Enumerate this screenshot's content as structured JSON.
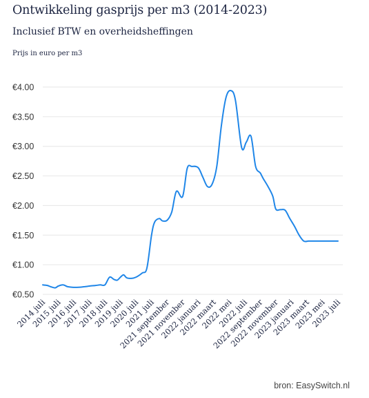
{
  "chart_data": {
    "type": "line",
    "title": "Ontwikkeling gasprijs per m3 (2014-2023)",
    "subtitle": "Inclusief BTW en overheidsheffingen",
    "ylabel": "Prijs in euro per m3",
    "source": "bron: EasySwitch.nl",
    "color": "#1f86e8",
    "grid": true,
    "ylim": [
      0.5,
      4.0
    ],
    "y_ticks": [
      0.5,
      1.0,
      1.5,
      2.0,
      2.5,
      3.0,
      3.5,
      4.0
    ],
    "y_tick_labels": [
      "€0.50",
      "€1.00",
      "€1.50",
      "€2.00",
      "€2.50",
      "€3.00",
      "€3.50",
      "€4.00"
    ],
    "categories": [
      "2014 juli",
      "2015 juli",
      "2016 juli",
      "2017 juli",
      "2018 juli",
      "2019 juli",
      "2020 juli",
      "2021 juli",
      "2021 september",
      "2021 november",
      "2022 januari",
      "2022 maart",
      "2022 mei",
      "2022 juli",
      "2022 september",
      "2022 november",
      "2023 januari",
      "2023 maart",
      "2023 mei",
      "2023 juli"
    ],
    "x": [
      0,
      0.3,
      0.5,
      0.8,
      1.0,
      1.3,
      1.6,
      1.9,
      2.3,
      2.7,
      3.0,
      3.4,
      3.7,
      4.0,
      4.3,
      4.6,
      4.8,
      5.0,
      5.2,
      5.4,
      5.7,
      6.0,
      6.4,
      6.7,
      7.0,
      7.2,
      7.5,
      7.7,
      8.0,
      8.3,
      8.6,
      9.0,
      9.3,
      9.6,
      10.0,
      10.3,
      10.6,
      10.9,
      11.2,
      11.5,
      11.8,
      12.1,
      12.4,
      12.8,
      13.1,
      13.4,
      13.7,
      14.0,
      14.2,
      14.5,
      14.8,
      15.0,
      15.3,
      15.6,
      15.9,
      16.2,
      16.5,
      16.8,
      17.1,
      17.4,
      17.7,
      18.0,
      18.3,
      18.6,
      19.0
    ],
    "values": [
      0.66,
      0.65,
      0.63,
      0.61,
      0.64,
      0.66,
      0.63,
      0.62,
      0.62,
      0.63,
      0.64,
      0.65,
      0.66,
      0.66,
      0.79,
      0.75,
      0.74,
      0.79,
      0.83,
      0.78,
      0.77,
      0.79,
      0.86,
      0.94,
      1.5,
      1.72,
      1.78,
      1.74,
      1.75,
      1.89,
      2.24,
      2.15,
      2.63,
      2.66,
      2.64,
      2.48,
      2.32,
      2.36,
      2.66,
      3.36,
      3.83,
      3.94,
      3.78,
      2.98,
      3.07,
      3.17,
      2.66,
      2.55,
      2.45,
      2.32,
      2.16,
      1.94,
      1.93,
      1.92,
      1.78,
      1.65,
      1.5,
      1.4,
      1.4,
      1.4,
      1.4,
      1.4,
      1.4,
      1.4,
      1.4
    ]
  }
}
